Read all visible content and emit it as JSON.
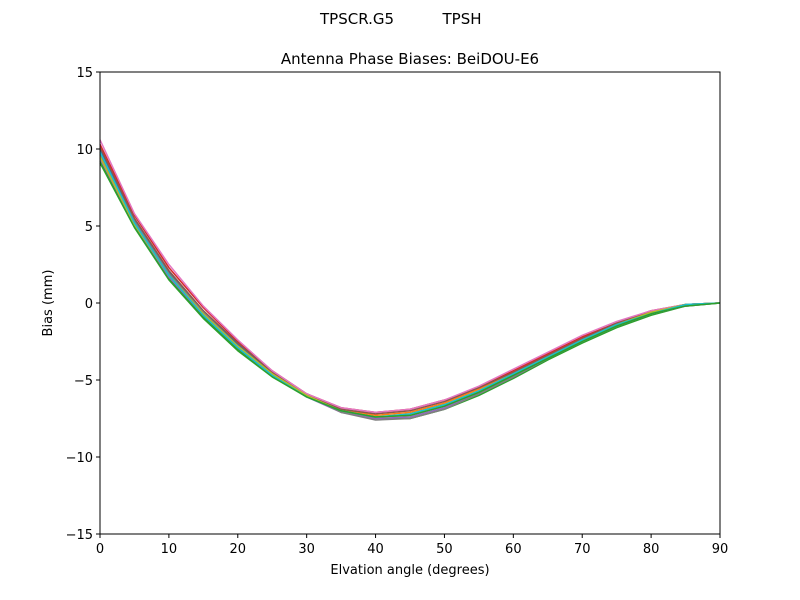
{
  "figure": {
    "suptitle_left": "TPSCR.G5",
    "suptitle_right": "TPSH"
  },
  "chart_data": {
    "type": "line",
    "title": "Antenna Phase Biases: BeiDOU-E6",
    "xlabel": "Elvation angle (degrees)",
    "ylabel": "Bias (mm)",
    "xlim": [
      0,
      90
    ],
    "ylim": [
      -15,
      15
    ],
    "xticks": [
      0,
      10,
      20,
      30,
      40,
      50,
      60,
      70,
      80,
      90
    ],
    "yticks": [
      -15,
      -10,
      -5,
      0,
      5,
      10,
      15
    ],
    "ytick_labels": [
      "−15",
      "−10",
      "−5",
      "0",
      "5",
      "10",
      "15"
    ],
    "grid": false,
    "legend": "none",
    "x": [
      0,
      5,
      10,
      15,
      20,
      25,
      30,
      35,
      40,
      45,
      50,
      55,
      60,
      65,
      70,
      75,
      80,
      85,
      90
    ],
    "series": [
      {
        "color": "#1f77b4",
        "values": [
          10.0,
          5.4,
          2.0,
          -0.6,
          -2.7,
          -4.6,
          -6.0,
          -7.0,
          -7.4,
          -7.3,
          -6.7,
          -5.8,
          -4.7,
          -3.5,
          -2.4,
          -1.4,
          -0.6,
          -0.1,
          0.0
        ]
      },
      {
        "color": "#ff7f0e",
        "values": [
          9.6,
          5.2,
          1.9,
          -0.7,
          -2.8,
          -4.7,
          -6.0,
          -6.9,
          -7.3,
          -7.1,
          -6.5,
          -5.6,
          -4.5,
          -3.4,
          -2.3,
          -1.4,
          -0.6,
          -0.1,
          0.0
        ]
      },
      {
        "color": "#2ca02c",
        "values": [
          9.2,
          5.0,
          1.6,
          -0.9,
          -3.0,
          -4.7,
          -6.0,
          -7.0,
          -7.5,
          -7.5,
          -6.9,
          -6.0,
          -4.9,
          -3.7,
          -2.6,
          -1.6,
          -0.8,
          -0.2,
          0.0
        ]
      },
      {
        "color": "#d62728",
        "values": [
          10.3,
          5.7,
          2.3,
          -0.3,
          -2.5,
          -4.4,
          -5.9,
          -6.8,
          -7.1,
          -6.9,
          -6.3,
          -5.5,
          -4.4,
          -3.3,
          -2.2,
          -1.3,
          -0.5,
          -0.1,
          0.0
        ]
      },
      {
        "color": "#9467bd",
        "values": [
          9.4,
          5.1,
          1.7,
          -0.8,
          -2.9,
          -4.7,
          -6.1,
          -7.1,
          -7.5,
          -7.4,
          -6.8,
          -5.9,
          -4.8,
          -3.6,
          -2.5,
          -1.5,
          -0.7,
          -0.2,
          0.0
        ]
      },
      {
        "color": "#8c564b",
        "values": [
          10.1,
          5.5,
          2.1,
          -0.5,
          -2.6,
          -4.5,
          -5.9,
          -6.9,
          -7.2,
          -7.0,
          -6.4,
          -5.5,
          -4.5,
          -3.4,
          -2.3,
          -1.3,
          -0.6,
          -0.1,
          0.0
        ]
      },
      {
        "color": "#e377c2",
        "values": [
          10.6,
          5.8,
          2.5,
          -0.2,
          -2.4,
          -4.4,
          -5.9,
          -6.8,
          -7.1,
          -6.9,
          -6.3,
          -5.4,
          -4.3,
          -3.2,
          -2.1,
          -1.2,
          -0.5,
          -0.1,
          0.0
        ]
      },
      {
        "color": "#7f7f7f",
        "values": [
          9.7,
          5.3,
          1.9,
          -0.6,
          -2.8,
          -4.6,
          -6.0,
          -7.1,
          -7.6,
          -7.5,
          -6.9,
          -5.9,
          -4.8,
          -3.6,
          -2.5,
          -1.5,
          -0.7,
          -0.1,
          0.0
        ]
      },
      {
        "color": "#bcbd22",
        "values": [
          9.5,
          5.1,
          1.8,
          -0.7,
          -2.8,
          -4.6,
          -6.0,
          -7.0,
          -7.4,
          -7.3,
          -6.6,
          -5.7,
          -4.6,
          -3.5,
          -2.4,
          -1.4,
          -0.6,
          -0.1,
          0.0
        ]
      },
      {
        "color": "#17becf",
        "values": [
          9.8,
          5.2,
          1.8,
          -0.8,
          -2.9,
          -4.7,
          -6.1,
          -7.0,
          -7.4,
          -7.2,
          -6.6,
          -5.7,
          -4.6,
          -3.5,
          -2.4,
          -1.4,
          -0.7,
          -0.1,
          0.0
        ]
      },
      {
        "color": "#2ca02c",
        "values": [
          9.1,
          4.9,
          1.5,
          -1.0,
          -3.1,
          -4.8,
          -6.1,
          -7.0,
          -7.4,
          -7.3,
          -6.7,
          -5.8,
          -4.7,
          -3.6,
          -2.5,
          -1.5,
          -0.7,
          -0.2,
          0.0
        ]
      }
    ]
  }
}
